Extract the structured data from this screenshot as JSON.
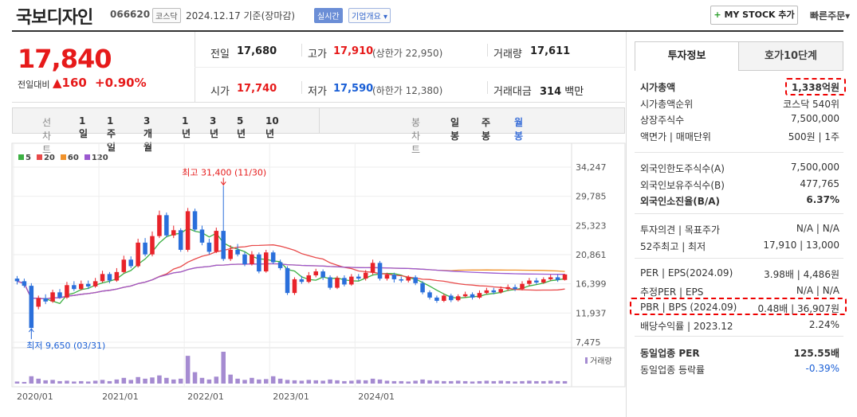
{
  "header": {
    "company_name": "국보디자인",
    "code": "066620",
    "market_badge": "코스닥",
    "date_text": "2024.12.17 기준(장마감)",
    "live_badge": "실시간",
    "overview_badge": "기업개요",
    "overview_arrow": "▾",
    "mystock_plus": "+",
    "mystock_label": "MY STOCK 추가",
    "quick_order": "빠른주문",
    "quick_order_arrow": "▾"
  },
  "quote": {
    "price": "17,840",
    "change_label": "전일대비",
    "change_arrow": "▲",
    "change": "160",
    "change_pct": "+0.90%",
    "prev_close_label": "전일",
    "prev_close": "17,680",
    "open_label": "시가",
    "open": "17,740",
    "high_label": "고가",
    "high": "17,910",
    "upper_limit": "(상한가 22,950)",
    "low_label": "저가",
    "low": "17,590",
    "lower_limit": "(하한가 12,380)",
    "volume_label": "거래량",
    "volume": "17,611",
    "amount_label": "거래대금",
    "amount": "314",
    "amount_unit": "백만"
  },
  "chart_tabs": {
    "line_label": "선차트",
    "line_items": [
      "1일",
      "1주일",
      "3개월",
      "1년",
      "3년",
      "5년",
      "10년"
    ],
    "candle_label": "봉차트",
    "candle_items": [
      "일봉",
      "주봉",
      "월봉"
    ],
    "active_candle": "월봉"
  },
  "chart_data": {
    "type": "candlestick",
    "x_ticks": [
      "2020/01",
      "2021/01",
      "2022/01",
      "2023/01",
      "2024/01"
    ],
    "y_ticks": [
      34247,
      29785,
      25323,
      20861,
      16399,
      11937,
      7475
    ],
    "y_tick_labels": [
      "34,247",
      "29,785",
      "25,323",
      "20,861",
      "16,399",
      "11,937",
      "7,475"
    ],
    "ylim": [
      7475,
      34247
    ],
    "legend": [
      {
        "name": "5",
        "color": "#3cb043"
      },
      {
        "name": "20",
        "color": "#e84a4a"
      },
      {
        "name": "60",
        "color": "#f0922b"
      },
      {
        "name": "120",
        "color": "#9b59d0"
      }
    ],
    "annotation_high": "최고 31,400 (11/30)",
    "annotation_low": "최저 9,650 (03/31)",
    "volume_label": "거래량",
    "candles": [
      [
        17200,
        16800,
        17600,
        16300
      ],
      [
        16800,
        16100,
        17200,
        15800
      ],
      [
        16100,
        9650,
        16500,
        9650
      ],
      [
        12900,
        14200,
        14600,
        12500
      ],
      [
        14200,
        13700,
        14800,
        13300
      ],
      [
        13700,
        15100,
        15500,
        13500
      ],
      [
        15100,
        14300,
        15600,
        14100
      ],
      [
        14300,
        16200,
        16700,
        14100
      ],
      [
        16200,
        15600,
        16800,
        15300
      ],
      [
        15600,
        16400,
        16900,
        15400
      ],
      [
        16400,
        16000,
        16900,
        15600
      ],
      [
        16000,
        16800,
        17300,
        15800
      ],
      [
        16800,
        17900,
        18400,
        16600
      ],
      [
        17900,
        16900,
        18200,
        16500
      ],
      [
        16900,
        18200,
        18800,
        16700
      ],
      [
        18200,
        20100,
        20700,
        18000
      ],
      [
        20100,
        19100,
        20600,
        18800
      ],
      [
        19100,
        22700,
        23300,
        18900
      ],
      [
        22700,
        20900,
        23400,
        20600
      ],
      [
        20900,
        23700,
        24400,
        20600
      ],
      [
        23700,
        26900,
        27600,
        23400
      ],
      [
        26900,
        23800,
        27300,
        23500
      ],
      [
        23800,
        24600,
        25300,
        23400
      ],
      [
        24600,
        21600,
        24900,
        21300
      ],
      [
        21600,
        27500,
        28000,
        21300
      ],
      [
        27500,
        24700,
        27900,
        24400
      ],
      [
        24700,
        22700,
        25300,
        22300
      ],
      [
        22700,
        21300,
        23300,
        20900
      ],
      [
        21300,
        24500,
        25000,
        21100
      ],
      [
        24500,
        20200,
        31400,
        19900
      ],
      [
        20200,
        21600,
        22300,
        19900
      ],
      [
        21600,
        20900,
        22500,
        20600
      ],
      [
        20900,
        19400,
        21300,
        19100
      ],
      [
        19400,
        20900,
        21400,
        19200
      ],
      [
        20900,
        18300,
        21200,
        18000
      ],
      [
        18300,
        21200,
        21600,
        18100
      ],
      [
        21200,
        19700,
        21500,
        19400
      ],
      [
        19700,
        18800,
        20100,
        18500
      ],
      [
        18800,
        15000,
        19100,
        14700
      ],
      [
        15000,
        17100,
        17400,
        14700
      ],
      [
        17100,
        16700,
        17600,
        16400
      ],
      [
        16700,
        17700,
        18200,
        16500
      ],
      [
        17700,
        18300,
        18700,
        17400
      ],
      [
        18300,
        17400,
        18600,
        17000
      ],
      [
        17400,
        15800,
        17700,
        15500
      ],
      [
        15800,
        17300,
        17600,
        15600
      ],
      [
        17300,
        16300,
        17700,
        16000
      ],
      [
        16300,
        17500,
        17900,
        16100
      ],
      [
        17500,
        17200,
        17900,
        16900
      ],
      [
        17200,
        18100,
        18500,
        16900
      ],
      [
        18100,
        19600,
        20100,
        17800
      ],
      [
        19600,
        17200,
        19900,
        16900
      ],
      [
        17200,
        17800,
        18100,
        16900
      ],
      [
        17800,
        17100,
        18100,
        16600
      ],
      [
        17100,
        16900,
        17500,
        16600
      ],
      [
        16900,
        17400,
        17700,
        16600
      ],
      [
        17400,
        16500,
        17700,
        16200
      ],
      [
        16500,
        15100,
        16800,
        14800
      ],
      [
        15100,
        14300,
        15400,
        14000
      ],
      [
        14300,
        13800,
        14600,
        13500
      ],
      [
        13800,
        14600,
        14900,
        13600
      ],
      [
        14600,
        13900,
        14900,
        13600
      ],
      [
        13900,
        14500,
        14800,
        13700
      ],
      [
        14500,
        14800,
        15200,
        14300
      ],
      [
        14800,
        14300,
        15100,
        14000
      ],
      [
        14300,
        15000,
        15400,
        14100
      ],
      [
        15000,
        15400,
        15800,
        14800
      ],
      [
        15400,
        15100,
        15800,
        14800
      ],
      [
        15100,
        15600,
        16000,
        14900
      ],
      [
        15600,
        15900,
        16300,
        15300
      ],
      [
        15900,
        15600,
        16300,
        15300
      ],
      [
        15600,
        16400,
        16800,
        15400
      ],
      [
        16400,
        16900,
        17300,
        16100
      ],
      [
        16900,
        16600,
        17300,
        16300
      ],
      [
        16600,
        17100,
        17400,
        16400
      ],
      [
        17100,
        17400,
        17800,
        16900
      ],
      [
        17400,
        17000,
        17800,
        16700
      ],
      [
        17000,
        17840,
        17910,
        16900
      ]
    ],
    "volumes": [
      5,
      4,
      18,
      12,
      8,
      9,
      6,
      7,
      5,
      6,
      5,
      7,
      9,
      6,
      10,
      14,
      9,
      16,
      12,
      15,
      20,
      14,
      10,
      12,
      68,
      28,
      14,
      10,
      17,
      78,
      22,
      12,
      9,
      14,
      10,
      11,
      18,
      12,
      9,
      8,
      7,
      9,
      8,
      7,
      10,
      8,
      6,
      7,
      9,
      8,
      12,
      10,
      7,
      6,
      6,
      5,
      7,
      10,
      8,
      7,
      6,
      6,
      7,
      6,
      5,
      6,
      7,
      6,
      7,
      6,
      5,
      6,
      7,
      6,
      6,
      7,
      6,
      6
    ]
  },
  "invest": {
    "tab_active": "투자정보",
    "tab_other": "호가10단계",
    "rows1": [
      {
        "label": "시가총액",
        "value": "1,338억원",
        "bold": true
      },
      {
        "label": "시가총액순위",
        "value": "코스닥 540위"
      },
      {
        "label": "상장주식수",
        "value": "7,500,000"
      },
      {
        "label": "액면가 | 매매단위",
        "value": "500원 | 1주"
      }
    ],
    "rows2": [
      {
        "label": "외국인한도주식수(A)",
        "value": "7,500,000"
      },
      {
        "label": "외국인보유주식수(B)",
        "value": "477,765"
      },
      {
        "label": "외국인소진율(B/A)",
        "value": "6.37%",
        "bold": true
      }
    ],
    "rows3": [
      {
        "label": "투자의견 | 목표주가",
        "value": "N/A | N/A"
      },
      {
        "label": "52주최고 | 최저",
        "value": "17,910 | 13,000"
      }
    ],
    "rows4": [
      {
        "label": "PER | EPS(2024.09)",
        "value": "3.98배 | 4,486원"
      },
      {
        "label": "추정PER | EPS",
        "value": "N/A | N/A"
      },
      {
        "label": "PBR | BPS (2024.09)",
        "value": "0.48배 | 36,907원"
      },
      {
        "label": "배당수익률 | 2023.12",
        "value": "2.24%"
      }
    ],
    "rows5": [
      {
        "label": "동일업종 PER",
        "value": "125.55배",
        "bold": true
      },
      {
        "label": "동일업종 등락률",
        "value": "-0.39%",
        "blue": true
      }
    ]
  }
}
